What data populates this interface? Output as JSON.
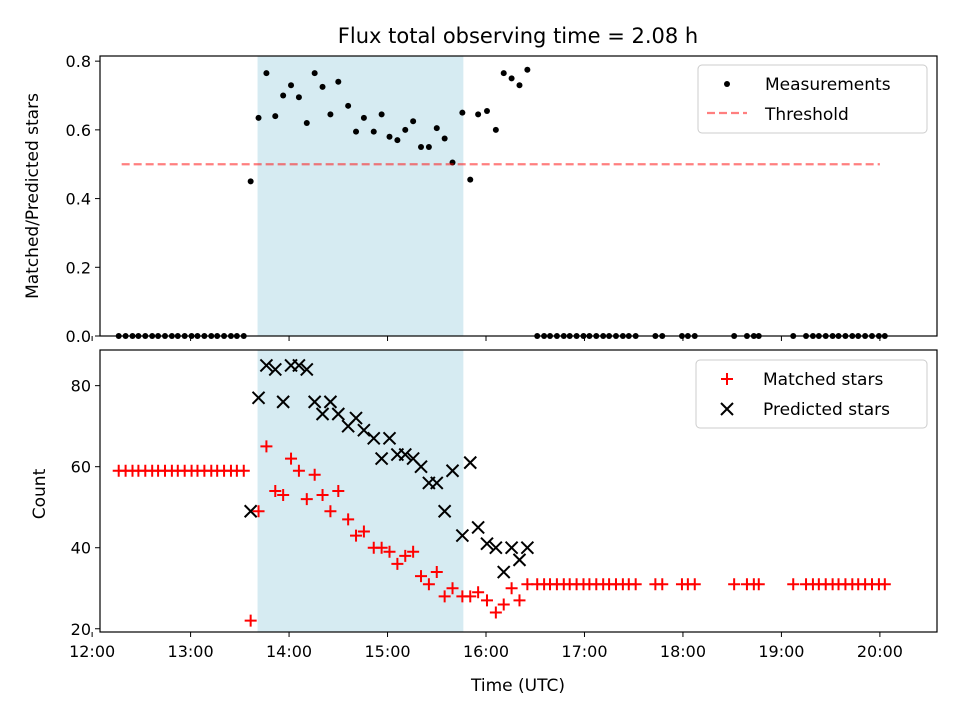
{
  "chart_data": [
    {
      "type": "scatter",
      "title": "Flux total observing time = 2.08 h",
      "ylabel": "Matched/Predicted stars",
      "xlabel": "",
      "ylim": [
        0,
        0.815
      ],
      "xlim": [
        12.08,
        20.58
      ],
      "yticks": [
        0.0,
        0.2,
        0.4,
        0.6,
        0.8
      ],
      "ytick_labels": [
        "0.0",
        "0.2",
        "0.4",
        "0.6",
        "0.8"
      ],
      "xticks": [
        12,
        13,
        14,
        15,
        16,
        17,
        18,
        19,
        20
      ],
      "highlight_span": [
        13.68,
        15.77
      ],
      "highlight_color": "#add8e6",
      "legend_position": "top-right",
      "series": [
        {
          "name": "Measurements",
          "color": "#000000",
          "marker": "dot",
          "points": [
            [
              12.27,
              0
            ],
            [
              12.34,
              0
            ],
            [
              12.41,
              0
            ],
            [
              12.47,
              0
            ],
            [
              12.54,
              0
            ],
            [
              12.61,
              0
            ],
            [
              12.67,
              0
            ],
            [
              12.74,
              0
            ],
            [
              12.81,
              0
            ],
            [
              12.87,
              0
            ],
            [
              12.94,
              0
            ],
            [
              13.01,
              0
            ],
            [
              13.07,
              0
            ],
            [
              13.14,
              0
            ],
            [
              13.21,
              0
            ],
            [
              13.27,
              0
            ],
            [
              13.34,
              0
            ],
            [
              13.41,
              0
            ],
            [
              13.47,
              0
            ],
            [
              13.54,
              0
            ],
            [
              13.61,
              0.45
            ],
            [
              13.69,
              0.635
            ],
            [
              13.77,
              0.765
            ],
            [
              13.86,
              0.64
            ],
            [
              13.94,
              0.7
            ],
            [
              14.02,
              0.73
            ],
            [
              14.1,
              0.695
            ],
            [
              14.18,
              0.62
            ],
            [
              14.26,
              0.765
            ],
            [
              14.34,
              0.725
            ],
            [
              14.42,
              0.645
            ],
            [
              14.5,
              0.74
            ],
            [
              14.6,
              0.67
            ],
            [
              14.68,
              0.595
            ],
            [
              14.76,
              0.635
            ],
            [
              14.86,
              0.595
            ],
            [
              14.94,
              0.645
            ],
            [
              15.02,
              0.58
            ],
            [
              15.1,
              0.57
            ],
            [
              15.18,
              0.6
            ],
            [
              15.26,
              0.625
            ],
            [
              15.34,
              0.55
            ],
            [
              15.42,
              0.55
            ],
            [
              15.5,
              0.605
            ],
            [
              15.58,
              0.575
            ],
            [
              15.66,
              0.505
            ],
            [
              15.76,
              0.65
            ],
            [
              15.84,
              0.455
            ],
            [
              15.92,
              0.645
            ],
            [
              16.01,
              0.655
            ],
            [
              16.1,
              0.6
            ],
            [
              16.18,
              0.765
            ],
            [
              16.26,
              0.75
            ],
            [
              16.34,
              0.73
            ],
            [
              16.42,
              0.775
            ],
            [
              16.52,
              0
            ],
            [
              16.59,
              0
            ],
            [
              16.65,
              0
            ],
            [
              16.72,
              0
            ],
            [
              16.79,
              0
            ],
            [
              16.85,
              0
            ],
            [
              16.92,
              0
            ],
            [
              16.99,
              0
            ],
            [
              17.05,
              0
            ],
            [
              17.12,
              0
            ],
            [
              17.19,
              0
            ],
            [
              17.25,
              0
            ],
            [
              17.32,
              0
            ],
            [
              17.39,
              0
            ],
            [
              17.45,
              0
            ],
            [
              17.52,
              0
            ],
            [
              17.72,
              0
            ],
            [
              17.79,
              0
            ],
            [
              17.99,
              0
            ],
            [
              18.05,
              0
            ],
            [
              18.12,
              0
            ],
            [
              18.52,
              0
            ],
            [
              18.65,
              0
            ],
            [
              18.72,
              0
            ],
            [
              18.77,
              0
            ],
            [
              19.12,
              0
            ],
            [
              19.25,
              0
            ],
            [
              19.32,
              0
            ],
            [
              19.38,
              0
            ],
            [
              19.45,
              0
            ],
            [
              19.52,
              0
            ],
            [
              19.58,
              0
            ],
            [
              19.65,
              0
            ],
            [
              19.72,
              0
            ],
            [
              19.78,
              0
            ],
            [
              19.85,
              0
            ],
            [
              19.92,
              0
            ],
            [
              19.99,
              0
            ],
            [
              20.05,
              0
            ]
          ]
        },
        {
          "name": "Threshold",
          "color": "#ff0000",
          "marker": "dashed-line",
          "points": [
            [
              12.3,
              0.5
            ],
            [
              20.0,
              0.5
            ]
          ]
        }
      ]
    },
    {
      "type": "scatter",
      "title": "",
      "xlabel": "Time (UTC)",
      "ylabel": "Count",
      "ylim": [
        19.2,
        88.8
      ],
      "xlim": [
        12.08,
        20.58
      ],
      "yticks": [
        20,
        40,
        60,
        80
      ],
      "xticks": [
        12,
        13,
        14,
        15,
        16,
        17,
        18,
        19,
        20
      ],
      "xtick_labels": [
        "12:00",
        "13:00",
        "14:00",
        "15:00",
        "16:00",
        "17:00",
        "18:00",
        "19:00",
        "20:00"
      ],
      "highlight_span": [
        13.68,
        15.77
      ],
      "highlight_color": "#add8e6",
      "legend_position": "top-right",
      "series": [
        {
          "name": "Matched stars",
          "color": "#ff0000",
          "marker": "plus",
          "points": [
            [
              12.27,
              59
            ],
            [
              12.34,
              59
            ],
            [
              12.41,
              59
            ],
            [
              12.47,
              59
            ],
            [
              12.54,
              59
            ],
            [
              12.61,
              59
            ],
            [
              12.67,
              59
            ],
            [
              12.74,
              59
            ],
            [
              12.81,
              59
            ],
            [
              12.87,
              59
            ],
            [
              12.94,
              59
            ],
            [
              13.01,
              59
            ],
            [
              13.07,
              59
            ],
            [
              13.14,
              59
            ],
            [
              13.21,
              59
            ],
            [
              13.27,
              59
            ],
            [
              13.34,
              59
            ],
            [
              13.41,
              59
            ],
            [
              13.47,
              59
            ],
            [
              13.54,
              59
            ],
            [
              13.61,
              22
            ],
            [
              13.69,
              49
            ],
            [
              13.77,
              65
            ],
            [
              13.86,
              54
            ],
            [
              13.94,
              53
            ],
            [
              14.02,
              62
            ],
            [
              14.1,
              59
            ],
            [
              14.18,
              52
            ],
            [
              14.26,
              58
            ],
            [
              14.34,
              53
            ],
            [
              14.42,
              49
            ],
            [
              14.5,
              54
            ],
            [
              14.6,
              47
            ],
            [
              14.68,
              43
            ],
            [
              14.76,
              44
            ],
            [
              14.86,
              40
            ],
            [
              14.94,
              40
            ],
            [
              15.02,
              39
            ],
            [
              15.1,
              36
            ],
            [
              15.18,
              38
            ],
            [
              15.26,
              39
            ],
            [
              15.34,
              33
            ],
            [
              15.42,
              31
            ],
            [
              15.5,
              34
            ],
            [
              15.58,
              28
            ],
            [
              15.66,
              30
            ],
            [
              15.76,
              28
            ],
            [
              15.84,
              28
            ],
            [
              15.92,
              29
            ],
            [
              16.01,
              27
            ],
            [
              16.1,
              24
            ],
            [
              16.18,
              26
            ],
            [
              16.26,
              30
            ],
            [
              16.34,
              27
            ],
            [
              16.42,
              31
            ],
            [
              16.52,
              31
            ],
            [
              16.59,
              31
            ],
            [
              16.65,
              31
            ],
            [
              16.72,
              31
            ],
            [
              16.79,
              31
            ],
            [
              16.85,
              31
            ],
            [
              16.92,
              31
            ],
            [
              16.99,
              31
            ],
            [
              17.05,
              31
            ],
            [
              17.12,
              31
            ],
            [
              17.19,
              31
            ],
            [
              17.25,
              31
            ],
            [
              17.32,
              31
            ],
            [
              17.39,
              31
            ],
            [
              17.45,
              31
            ],
            [
              17.52,
              31
            ],
            [
              17.72,
              31
            ],
            [
              17.79,
              31
            ],
            [
              17.99,
              31
            ],
            [
              18.05,
              31
            ],
            [
              18.12,
              31
            ],
            [
              18.52,
              31
            ],
            [
              18.65,
              31
            ],
            [
              18.72,
              31
            ],
            [
              18.77,
              31
            ],
            [
              19.12,
              31
            ],
            [
              19.25,
              31
            ],
            [
              19.32,
              31
            ],
            [
              19.38,
              31
            ],
            [
              19.45,
              31
            ],
            [
              19.52,
              31
            ],
            [
              19.58,
              31
            ],
            [
              19.65,
              31
            ],
            [
              19.72,
              31
            ],
            [
              19.78,
              31
            ],
            [
              19.85,
              31
            ],
            [
              19.92,
              31
            ],
            [
              19.99,
              31
            ],
            [
              20.05,
              31
            ]
          ]
        },
        {
          "name": "Predicted stars",
          "color": "#000000",
          "marker": "x",
          "points": [
            [
              13.61,
              49
            ],
            [
              13.69,
              77
            ],
            [
              13.77,
              85
            ],
            [
              13.86,
              84
            ],
            [
              13.94,
              76
            ],
            [
              14.02,
              85
            ],
            [
              14.1,
              85
            ],
            [
              14.18,
              84
            ],
            [
              14.26,
              76
            ],
            [
              14.34,
              73
            ],
            [
              14.42,
              76
            ],
            [
              14.5,
              73
            ],
            [
              14.6,
              70
            ],
            [
              14.68,
              72
            ],
            [
              14.76,
              69
            ],
            [
              14.86,
              67
            ],
            [
              14.94,
              62
            ],
            [
              15.02,
              67
            ],
            [
              15.1,
              63
            ],
            [
              15.18,
              63
            ],
            [
              15.26,
              62
            ],
            [
              15.34,
              60
            ],
            [
              15.42,
              56
            ],
            [
              15.5,
              56
            ],
            [
              15.58,
              49
            ],
            [
              15.66,
              59
            ],
            [
              15.76,
              43
            ],
            [
              15.84,
              61
            ],
            [
              15.92,
              45
            ],
            [
              16.01,
              41
            ],
            [
              16.1,
              40
            ],
            [
              16.18,
              34
            ],
            [
              16.26,
              40
            ],
            [
              16.34,
              37
            ],
            [
              16.42,
              40
            ]
          ]
        }
      ]
    }
  ]
}
